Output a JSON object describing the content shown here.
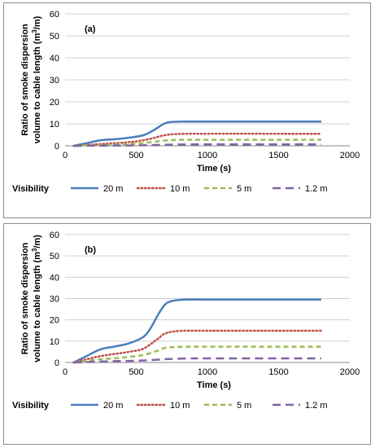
{
  "chart_data": [
    {
      "type": "line",
      "panel_label": "(a)",
      "title": "",
      "xlabel": "Time (s)",
      "ylabel": "Ratio of smoke dispersion volume to cable length (m³/m)",
      "ylabel_lines": [
        "Ratio of smoke dispersion",
        "volume to cable length (m",
        "3",
        "/m)"
      ],
      "xlim": [
        0,
        2000
      ],
      "ylim": [
        0,
        60
      ],
      "xticks": [
        0,
        500,
        1000,
        1500,
        2000
      ],
      "yticks": [
        0,
        10,
        20,
        30,
        40,
        50,
        60
      ],
      "grid": "horizontal",
      "legend_title": "Visibility",
      "legend_position": "bottom",
      "series": [
        {
          "name": "20 m",
          "color": "#4a7ebb",
          "style": "solid",
          "x": [
            60,
            150,
            250,
            350,
            450,
            550,
            620,
            700,
            760,
            850,
            1000,
            1200,
            1500,
            1800
          ],
          "y": [
            0,
            1.2,
            2.5,
            3,
            3.7,
            4.8,
            7,
            10.2,
            10.9,
            11,
            11,
            11,
            11,
            11
          ]
        },
        {
          "name": "10 m",
          "color": "#c0504d",
          "style": "dotted",
          "x": [
            60,
            200,
            300,
            400,
            500,
            600,
            700,
            800,
            1000,
            1500,
            1800
          ],
          "y": [
            0,
            0.6,
            1,
            1.4,
            2,
            3.2,
            4.8,
            5.4,
            5.5,
            5.5,
            5.5
          ]
        },
        {
          "name": "5 m",
          "color": "#9bbb59",
          "style": "dashed",
          "x": [
            60,
            200,
            300,
            400,
            500,
            600,
            700,
            800,
            1000,
            1500,
            1800
          ],
          "y": [
            0,
            0.3,
            0.5,
            0.7,
            1,
            1.6,
            2.4,
            2.7,
            2.75,
            2.75,
            2.75
          ]
        },
        {
          "name": "1.2 m",
          "color": "#8064a2",
          "style": "longdash",
          "x": [
            60,
            300,
            500,
            650,
            800,
            1000,
            1800
          ],
          "y": [
            0,
            0.1,
            0.2,
            0.4,
            0.6,
            0.65,
            0.65
          ]
        }
      ]
    },
    {
      "type": "line",
      "panel_label": "(b)",
      "title": "",
      "xlabel": "Time (s)",
      "ylabel": "Ratio of smoke dispersion volume to cable length (m³/m)",
      "ylabel_lines": [
        "Ratio of smoke dispersion",
        "volume to cable length (m",
        "3",
        "/m)"
      ],
      "xlim": [
        0,
        2000
      ],
      "ylim": [
        0,
        60
      ],
      "xticks": [
        0,
        500,
        1000,
        1500,
        2000
      ],
      "yticks": [
        0,
        10,
        20,
        30,
        40,
        50,
        60
      ],
      "grid": "horizontal",
      "legend_title": "Visibility",
      "legend_position": "bottom",
      "series": [
        {
          "name": "20 m",
          "color": "#4a7ebb",
          "style": "solid",
          "x": [
            60,
            150,
            250,
            350,
            450,
            550,
            600,
            650,
            700,
            750,
            850,
            1000,
            1200,
            1500,
            1800
          ],
          "y": [
            0,
            3,
            6.2,
            7.5,
            9,
            12,
            16,
            22,
            27,
            28.8,
            29.5,
            29.5,
            29.5,
            29.5,
            29.5
          ]
        },
        {
          "name": "10 m",
          "color": "#c0504d",
          "style": "dotted",
          "x": [
            60,
            150,
            250,
            350,
            450,
            550,
            650,
            700,
            800,
            1000,
            1500,
            1800
          ],
          "y": [
            0,
            1.5,
            3,
            4,
            5,
            6.5,
            11,
            13.5,
            14.8,
            14.9,
            14.9,
            14.9
          ]
        },
        {
          "name": "5 m",
          "color": "#9bbb59",
          "style": "dashed",
          "x": [
            60,
            150,
            250,
            350,
            450,
            550,
            650,
            700,
            800,
            1000,
            1500,
            1800
          ],
          "y": [
            0,
            0.8,
            1.5,
            2,
            2.6,
            3.5,
            5.5,
            6.8,
            7.3,
            7.4,
            7.4,
            7.4
          ]
        },
        {
          "name": "1.2 m",
          "color": "#8064a2",
          "style": "longdash",
          "x": [
            60,
            200,
            350,
            500,
            650,
            750,
            900,
            1000,
            1800
          ],
          "y": [
            0,
            0.3,
            0.6,
            0.8,
            1.3,
            1.7,
            1.9,
            1.9,
            1.9
          ]
        }
      ]
    }
  ]
}
